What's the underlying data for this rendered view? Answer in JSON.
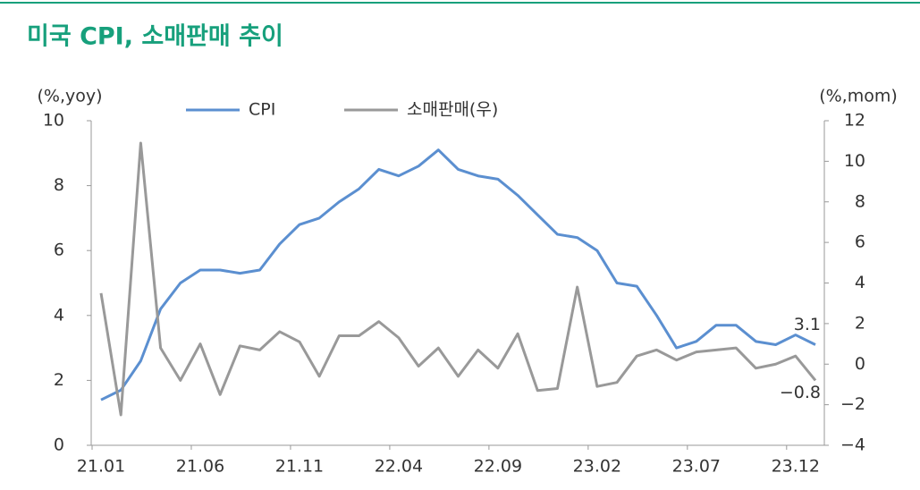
{
  "chart_data": {
    "type": "line",
    "title": "미국 CPI, 소매판매 추이",
    "y_label": "(%,yoy)",
    "y2_label": "(%,mom)",
    "categories": [
      "21.01",
      null,
      null,
      null,
      null,
      "21.06",
      null,
      null,
      null,
      null,
      "21.11",
      null,
      null,
      null,
      null,
      "22.04",
      null,
      null,
      null,
      null,
      "22.09",
      null,
      null,
      null,
      null,
      "23.02",
      null,
      null,
      null,
      null,
      "23.07",
      null,
      null,
      null,
      null,
      "23.12",
      null
    ],
    "series": [
      {
        "name": "CPI",
        "color": "#5b8fd0",
        "values": [
          1.4,
          1.7,
          2.6,
          4.2,
          5.0,
          5.4,
          5.4,
          5.3,
          5.4,
          6.2,
          6.8,
          7.0,
          7.5,
          7.9,
          8.5,
          8.3,
          8.6,
          9.1,
          8.5,
          8.3,
          8.2,
          7.7,
          7.1,
          6.5,
          6.4,
          6.0,
          5.0,
          4.9,
          4.0,
          3.0,
          3.2,
          3.7,
          3.7,
          3.2,
          3.1,
          3.4,
          3.1
        ],
        "value_labels": [
          null,
          null,
          null,
          null,
          null,
          null,
          null,
          null,
          null,
          null,
          null,
          null,
          null,
          null,
          null,
          null,
          null,
          null,
          null,
          null,
          null,
          null,
          null,
          null,
          null,
          null,
          null,
          null,
          null,
          null,
          null,
          null,
          null,
          null,
          null,
          null,
          "3.1"
        ]
      },
      {
        "name": "소매판매(우)",
        "color": "#999999",
        "axis": "y2",
        "values": [
          3.5,
          -2.5,
          10.9,
          0.8,
          -0.8,
          1.0,
          -1.5,
          0.9,
          0.7,
          1.6,
          1.1,
          -0.6,
          1.4,
          1.4,
          2.1,
          1.3,
          -0.1,
          0.8,
          -0.6,
          0.7,
          -0.2,
          1.5,
          -1.3,
          -1.2,
          3.8,
          -1.1,
          -0.9,
          0.4,
          0.7,
          0.2,
          0.6,
          0.7,
          0.8,
          -0.2,
          0.0,
          0.4,
          -0.8
        ],
        "value_labels": [
          null,
          null,
          null,
          null,
          null,
          null,
          null,
          null,
          null,
          null,
          null,
          null,
          null,
          null,
          null,
          null,
          null,
          null,
          null,
          null,
          null,
          null,
          null,
          null,
          null,
          null,
          null,
          null,
          null,
          null,
          null,
          null,
          null,
          null,
          null,
          null,
          "−0.8"
        ]
      }
    ],
    "ylim": [
      0,
      10
    ],
    "yticks": [
      0,
      2,
      4,
      6,
      8,
      10
    ],
    "y2lim": [
      -4,
      12
    ],
    "y2ticks": [
      {
        "value": -4,
        "label": "−4"
      },
      {
        "value": -2,
        "label": "−2"
      },
      0,
      2,
      4,
      6,
      8,
      10,
      12
    ],
    "legend": "top"
  }
}
